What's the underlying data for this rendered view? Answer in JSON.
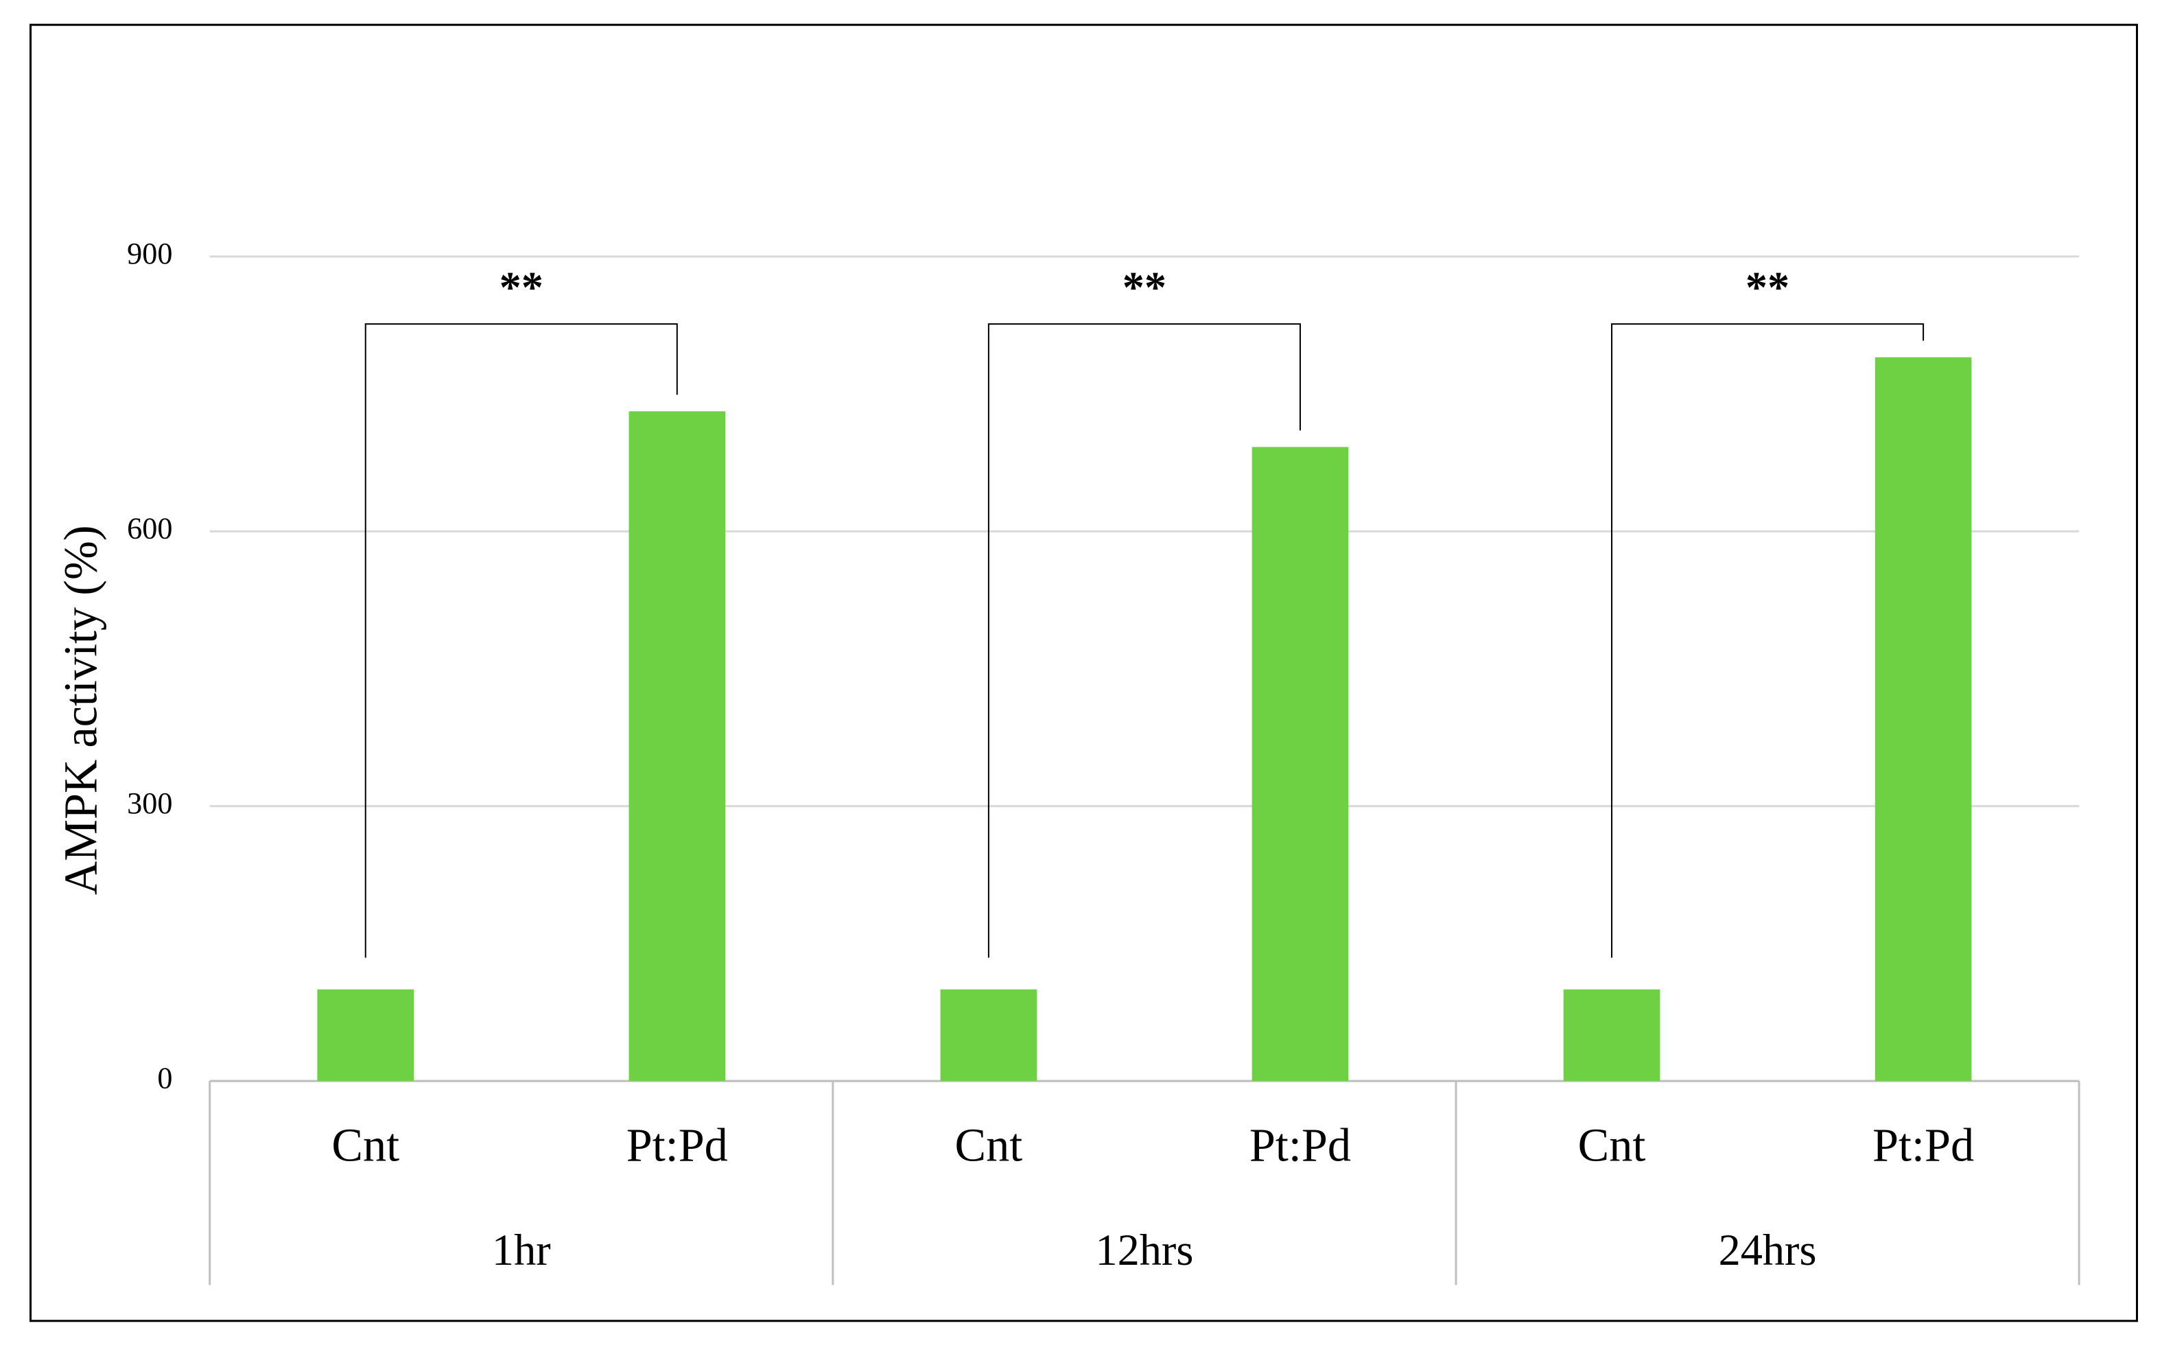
{
  "chart_data": {
    "type": "bar",
    "y_label": "AMPK activity (%)",
    "categories": [
      "Cnt",
      "Pt:Pd",
      "Cnt",
      "Pt:Pd",
      "Cnt",
      "Pt:Pd"
    ],
    "groups": [
      "1hr",
      "12hrs",
      "24hrs"
    ],
    "values": [
      100,
      731,
      100,
      692,
      100,
      790
    ],
    "color": "#6ed043",
    "ylim": [
      0,
      900
    ],
    "yticks": [
      0,
      300,
      600,
      900
    ],
    "grid": true,
    "annotations": [
      "**",
      "**",
      "**"
    ]
  }
}
